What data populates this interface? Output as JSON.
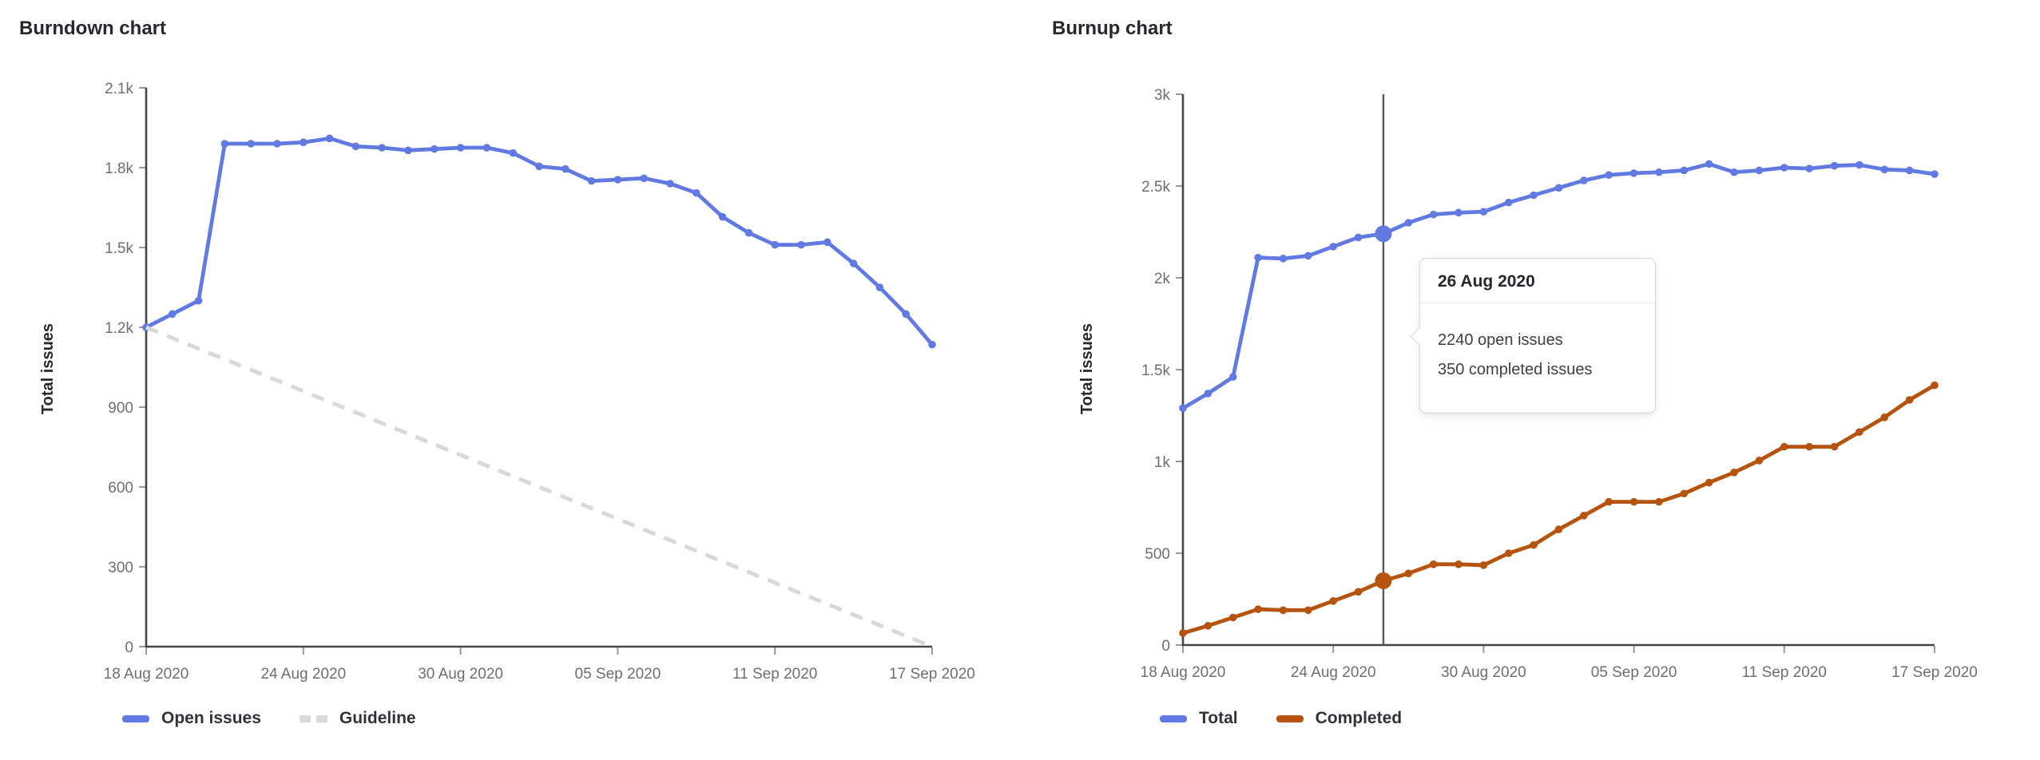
{
  "page": {
    "background": "#ffffff"
  },
  "chart_data": [
    {
      "type": "line",
      "title": "Burndown chart",
      "ylabel": "Total issues",
      "ylim": [
        0,
        2100
      ],
      "y_tick_step": 300,
      "y_tick_labels": [
        "0",
        "300",
        "600",
        "900",
        "1.2k",
        "1.5k",
        "1.8k",
        "2.1k"
      ],
      "x_tick_every": 6,
      "x_tick_labels": [
        "18 Aug 2020",
        "24 Aug 2020",
        "30 Aug 2020",
        "05 Sep 2020",
        "11 Sep 2020",
        "17 Sep 2020"
      ],
      "x_range": [
        "18 Aug 2020",
        "17 Sep 2020"
      ],
      "grid": false,
      "legend_position": "bottom",
      "series": [
        {
          "name": "Open issues",
          "color": "#617ae2",
          "style": "solid",
          "values": [
            1200,
            1250,
            1300,
            1890,
            1890,
            1890,
            1895,
            1910,
            1880,
            1875,
            1865,
            1870,
            1875,
            1875,
            1855,
            1805,
            1795,
            1750,
            1755,
            1760,
            1740,
            1705,
            1615,
            1555,
            1510,
            1510,
            1520,
            1440,
            1350,
            1250,
            1135
          ]
        },
        {
          "name": "Guideline",
          "color": "#d9d9d9",
          "style": "dashed",
          "values": [
            1200,
            0
          ]
        }
      ]
    },
    {
      "type": "line",
      "title": "Burnup chart",
      "ylabel": "Total issues",
      "ylim": [
        0,
        3000
      ],
      "y_tick_step": 500,
      "y_tick_labels": [
        "0",
        "500",
        "1k",
        "1.5k",
        "2k",
        "2.5k",
        "3k"
      ],
      "x_tick_every": 6,
      "x_tick_labels": [
        "18 Aug 2020",
        "24 Aug 2020",
        "30 Aug 2020",
        "05 Sep 2020",
        "11 Sep 2020",
        "17 Sep 2020"
      ],
      "x_range": [
        "18 Aug 2020",
        "17 Sep 2020"
      ],
      "grid": false,
      "legend_position": "bottom",
      "series": [
        {
          "name": "Total",
          "color": "#617ae2",
          "style": "solid",
          "values": [
            1290,
            1370,
            1460,
            2110,
            2105,
            2120,
            2170,
            2220,
            2240,
            2300,
            2345,
            2355,
            2360,
            2410,
            2450,
            2490,
            2530,
            2560,
            2570,
            2575,
            2585,
            2620,
            2575,
            2585,
            2600,
            2595,
            2610,
            2615,
            2590,
            2585,
            2565
          ]
        },
        {
          "name": "Completed",
          "color": "#b5530f",
          "style": "solid",
          "values": [
            65,
            105,
            150,
            195,
            190,
            190,
            240,
            290,
            350,
            390,
            440,
            440,
            435,
            500,
            545,
            630,
            705,
            780,
            780,
            780,
            825,
            885,
            940,
            1005,
            1080,
            1080,
            1080,
            1160,
            1240,
            1335,
            1415
          ]
        }
      ],
      "hover": {
        "index": 8,
        "date": "26 Aug 2020",
        "values": [
          2240,
          350
        ],
        "line_color": "#595959",
        "tooltip_lines": [
          "2240 open issues",
          "350 completed issues"
        ]
      }
    }
  ]
}
